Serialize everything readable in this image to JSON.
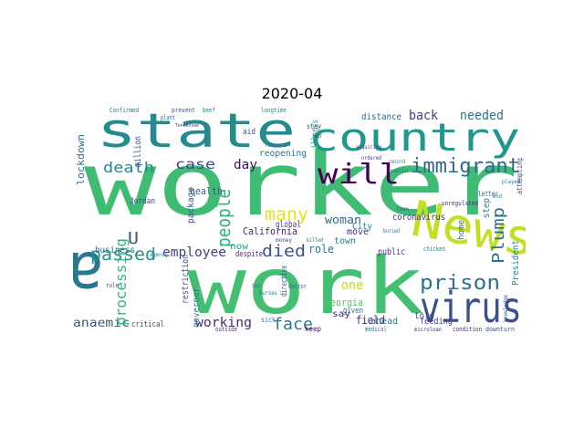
{
  "figure": {
    "title": "2020-04"
  },
  "words": [
    {
      "text": "worker",
      "color": "#3fbc73"
    },
    {
      "text": "work",
      "color": "#43bf71"
    },
    {
      "text": "state",
      "color": "#238a8d"
    },
    {
      "text": "country",
      "color": "#1f988b"
    },
    {
      "text": "News",
      "color": "#c2df23"
    },
    {
      "text": "virus",
      "color": "#3b528b"
    },
    {
      "text": "a",
      "color": "#2a788e"
    },
    {
      "text": "will",
      "color": "#440154"
    },
    {
      "text": "immigrant",
      "color": "#31688e"
    },
    {
      "text": "prison",
      "color": "#2c728e"
    },
    {
      "text": "passed",
      "color": "#21918c"
    },
    {
      "text": "died",
      "color": "#3b528b"
    },
    {
      "text": "face",
      "color": "#2a788e"
    },
    {
      "text": "many",
      "color": "#e5e419"
    },
    {
      "text": "people",
      "color": "#2fb47c"
    },
    {
      "text": "death",
      "color": "#23898e"
    },
    {
      "text": "case",
      "color": "#3e4989"
    },
    {
      "text": "Plump",
      "color": "#2c718e"
    },
    {
      "text": "employee",
      "color": "#414487"
    },
    {
      "text": "working",
      "color": "#482878"
    },
    {
      "text": "anaemic",
      "color": "#39568c"
    },
    {
      "text": "processing",
      "color": "#35b779"
    },
    {
      "text": "needed",
      "color": "#2e6e8e"
    },
    {
      "text": "back",
      "color": "#433e85"
    },
    {
      "text": "day",
      "color": "#460b5e"
    },
    {
      "text": "one",
      "color": "#bddf26"
    },
    {
      "text": "woman",
      "color": "#31688e"
    },
    {
      "text": "California",
      "color": "#481f70"
    },
    {
      "text": "Georgia",
      "color": "#54c568"
    },
    {
      "text": "reopening",
      "color": "#2d708e"
    },
    {
      "text": "U",
      "color": "#3b528b"
    },
    {
      "text": "role",
      "color": "#2a768e"
    },
    {
      "text": "field",
      "color": "#482475"
    },
    {
      "text": "health",
      "color": "#355f8d"
    },
    {
      "text": "coronavirus",
      "color": "#46337e"
    },
    {
      "text": "lockdown",
      "color": "#2e6d8e"
    },
    {
      "text": "global",
      "color": "#443983"
    },
    {
      "text": "distance",
      "color": "#31688e"
    },
    {
      "text": "illness",
      "color": "#29af7f"
    },
    {
      "text": "million",
      "color": "#39568c"
    },
    {
      "text": "business",
      "color": "#2c728e"
    },
    {
      "text": "restriction",
      "color": "#3e4989"
    },
    {
      "text": "package",
      "color": "#3b528b"
    },
    {
      "text": "town",
      "color": "#26828e"
    },
    {
      "text": "move",
      "color": "#472d7b"
    },
    {
      "text": "public",
      "color": "#46337e"
    },
    {
      "text": "ahead",
      "color": "#2c728e"
    },
    {
      "text": "feeding",
      "color": "#433e85"
    },
    {
      "text": "say",
      "color": "#482475"
    },
    {
      "text": "now",
      "color": "#1f9e89"
    },
    {
      "text": "told",
      "color": "#3e4989"
    },
    {
      "text": "step",
      "color": "#2a788e"
    },
    {
      "text": "President",
      "color": "#25848e"
    },
    {
      "text": "governor",
      "color": "#2d708e"
    },
    {
      "text": "City",
      "color": "#26828e"
    },
    {
      "text": "home",
      "color": "#34618d"
    },
    {
      "text": "Jordan",
      "color": "#3e4989"
    },
    {
      "text": "critical",
      "color": "#414487"
    },
    {
      "text": "despite",
      "color": "#482878"
    },
    {
      "text": "given",
      "color": "#32658e"
    },
    {
      "text": "directive",
      "color": "#3b528b"
    },
    {
      "text": "keep",
      "color": "#460b5e"
    },
    {
      "text": "sick",
      "color": "#2a788e"
    },
    {
      "text": "letter",
      "color": "#31688e"
    },
    {
      "text": "attempting",
      "color": "#3e4989"
    },
    {
      "text": "Confirmed",
      "color": "#2c718e"
    },
    {
      "text": "aid",
      "color": "#3b528b"
    },
    {
      "text": "chicken",
      "color": "#26828e"
    },
    {
      "text": "unregulated",
      "color": "#472d7b"
    },
    {
      "text": "doctor",
      "color": "#31688e"
    },
    {
      "text": "stay",
      "color": "#3e4989"
    },
    {
      "text": "killed",
      "color": "#2c728e"
    },
    {
      "text": "rule",
      "color": "#414487"
    },
    {
      "text": "outside",
      "color": "#46337e"
    },
    {
      "text": "medical",
      "color": "#2d708e"
    },
    {
      "text": "condition",
      "color": "#482878"
    },
    {
      "text": "downturn",
      "color": "#3b528b"
    },
    {
      "text": "plant",
      "color": "#31688e"
    },
    {
      "text": "beef",
      "color": "#2a788e"
    },
    {
      "text": "prevent",
      "color": "#3e4989"
    },
    {
      "text": "longtime",
      "color": "#26828e"
    },
    {
      "text": "Tennessee",
      "color": "#46337e"
    },
    {
      "text": "hospital",
      "color": "#2c728e"
    },
    {
      "text": "ordered",
      "color": "#414487"
    },
    {
      "text": "record",
      "color": "#31688e"
    },
    {
      "text": "loan",
      "color": "#3b528b"
    },
    {
      "text": "played",
      "color": "#2d708e"
    },
    {
      "text": "microloan",
      "color": "#472d7b"
    },
    {
      "text": "Nurses",
      "color": "#26828e"
    },
    {
      "text": "money",
      "color": "#3e4989"
    },
    {
      "text": "agency",
      "color": "#2a788e"
    },
    {
      "text": "respond",
      "color": "#31688e"
    },
    {
      "text": "acquiring",
      "color": "#414487"
    },
    {
      "text": "buried",
      "color": "#2c728e"
    },
    {
      "text": "knowledge",
      "color": "#3b528b"
    },
    {
      "text": "red",
      "color": "#46337e"
    },
    {
      "text": "end",
      "color": "#26828e"
    },
    {
      "text": "Son",
      "color": "#31688e"
    }
  ]
}
